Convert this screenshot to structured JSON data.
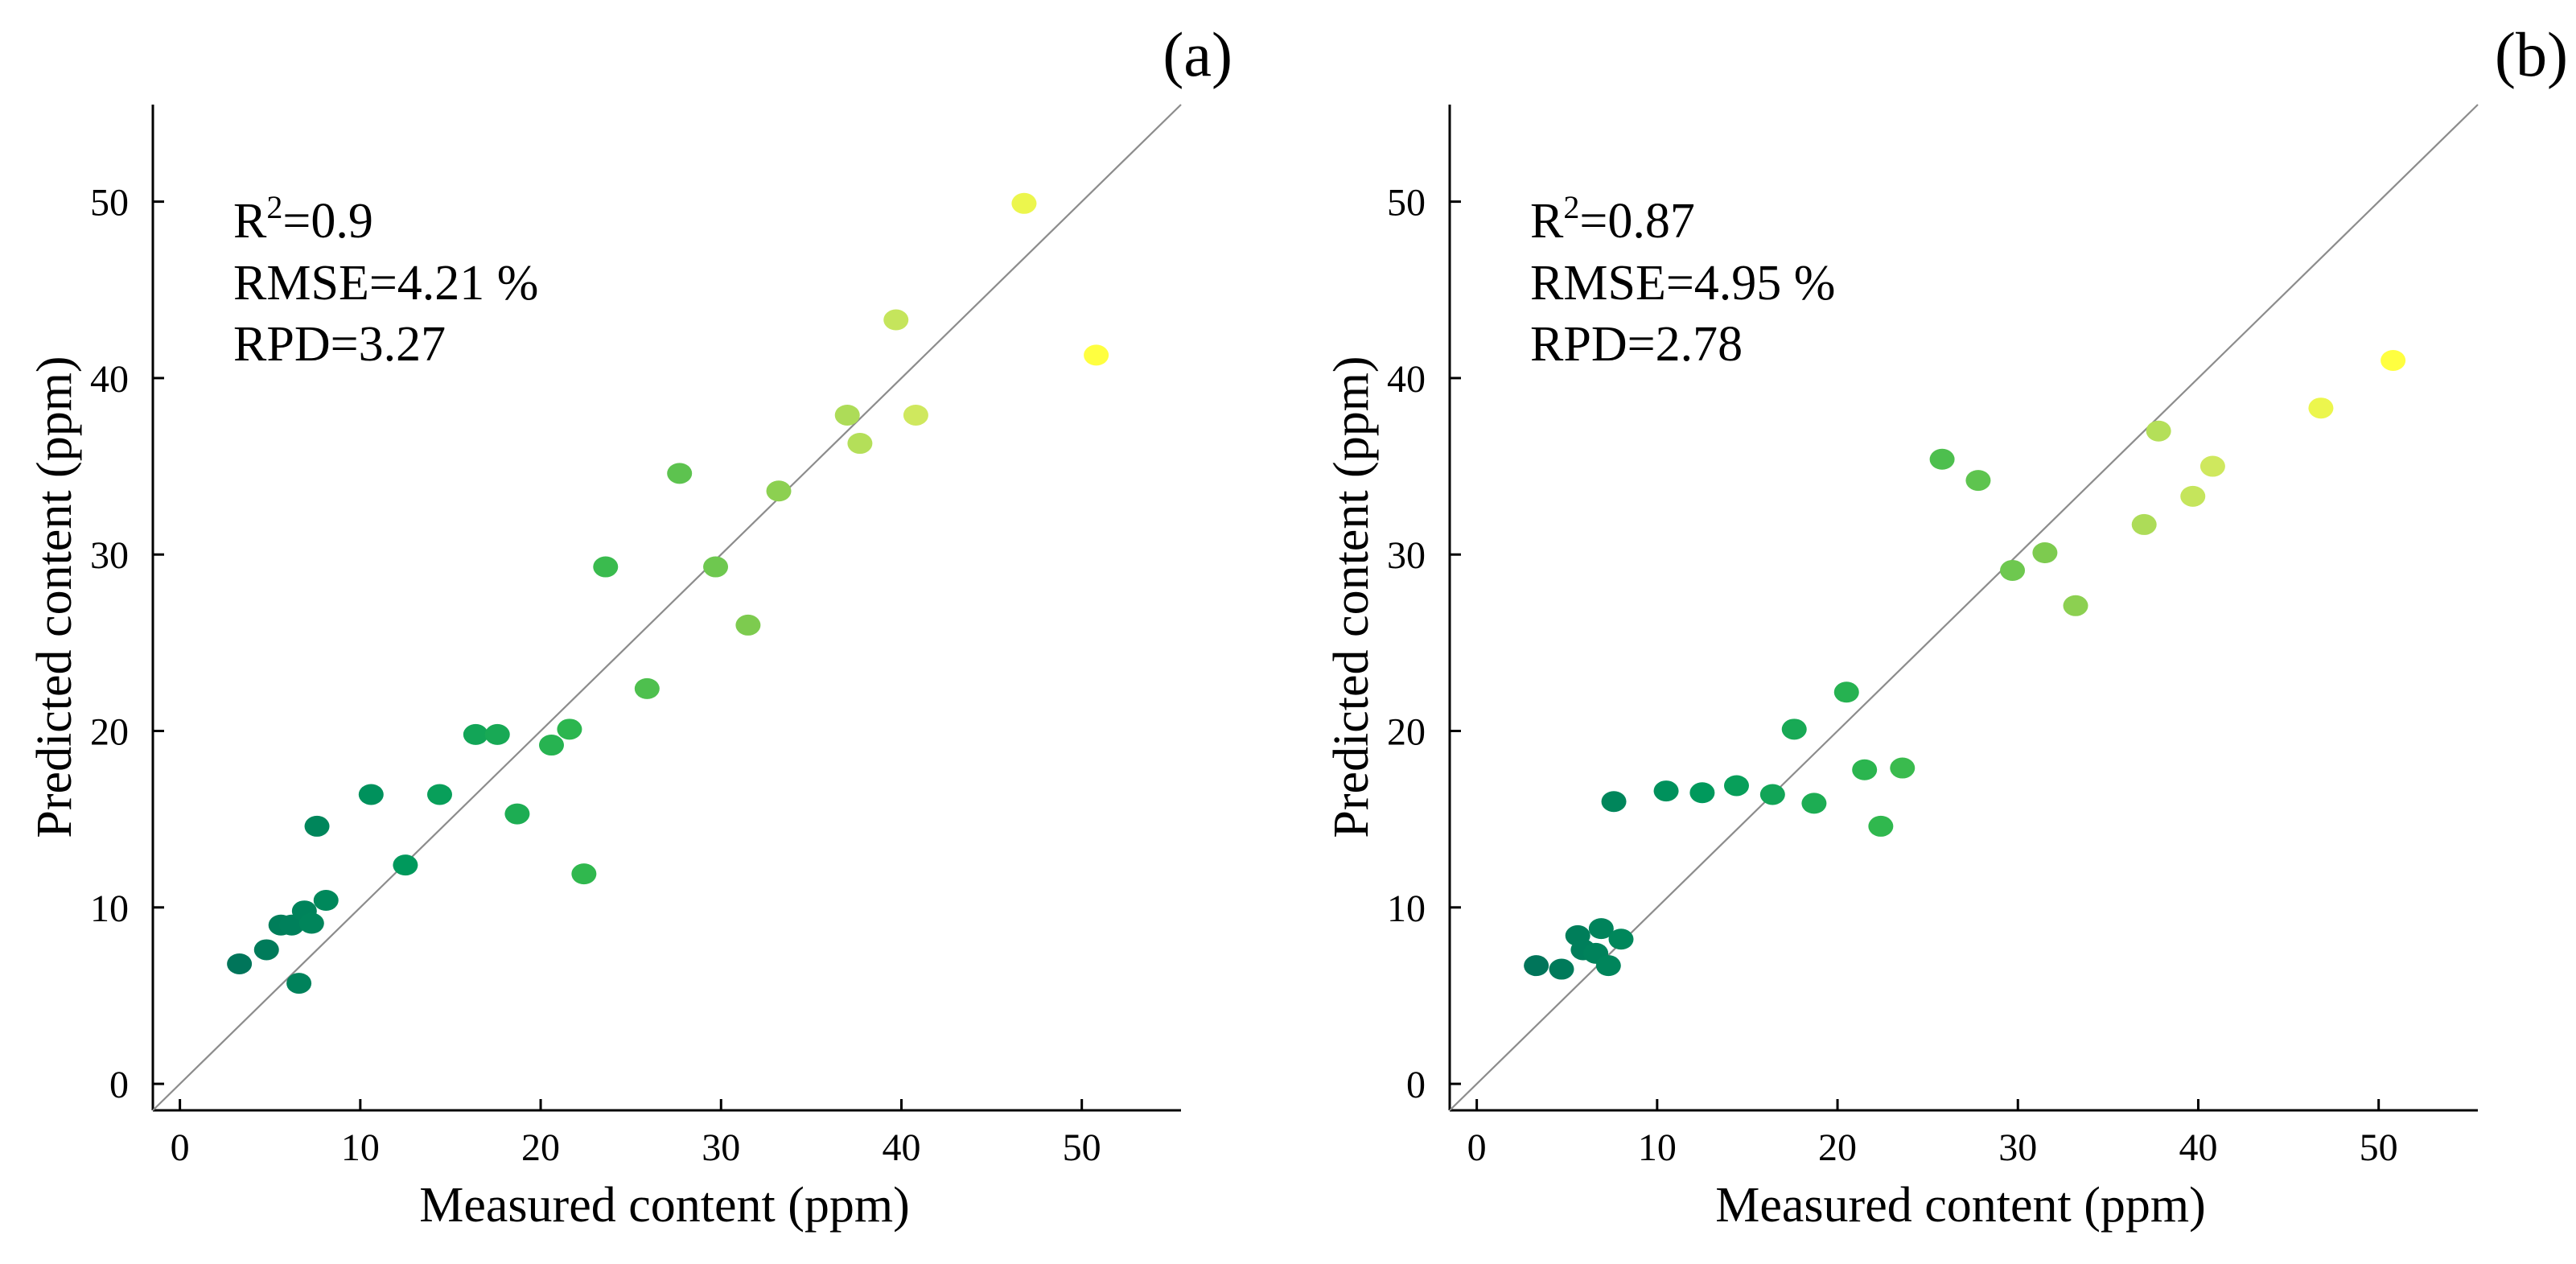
{
  "chart_data": [
    {
      "type": "scatter",
      "panel_label": "(a)",
      "xlabel": "Measured content (ppm)",
      "ylabel": "Predicted content (ppm)",
      "xlim": [
        -1.5,
        55.5
      ],
      "ylim": [
        -1.5,
        55.5
      ],
      "xticks": [
        "0",
        "10",
        "20",
        "30",
        "40",
        "50"
      ],
      "yticks": [
        "0",
        "10",
        "20",
        "30",
        "40",
        "50"
      ],
      "xtick_values": [
        0,
        10,
        20,
        30,
        40,
        50
      ],
      "ytick_values": [
        0,
        10,
        20,
        30,
        40,
        50
      ],
      "reference_line": "y = x",
      "stats": {
        "r2_label": "R",
        "r2_sup": "2",
        "r2_value": "=0.9",
        "rmse": "RMSE=4.21 %",
        "rpd": "RPD=3.27"
      },
      "colormap": [
        "#00755a",
        "#009a5c",
        "#2fb84e",
        "#80cc4f",
        "#d3ea5f",
        "#ffff40"
      ],
      "points": [
        {
          "x": 3.3,
          "y": 6.8
        },
        {
          "x": 4.8,
          "y": 7.6
        },
        {
          "x": 5.6,
          "y": 9.0
        },
        {
          "x": 6.2,
          "y": 9.0
        },
        {
          "x": 6.6,
          "y": 5.7
        },
        {
          "x": 6.9,
          "y": 9.8
        },
        {
          "x": 7.3,
          "y": 9.1
        },
        {
          "x": 7.6,
          "y": 14.6
        },
        {
          "x": 8.1,
          "y": 10.4
        },
        {
          "x": 10.6,
          "y": 16.4
        },
        {
          "x": 12.5,
          "y": 12.4
        },
        {
          "x": 14.4,
          "y": 16.4
        },
        {
          "x": 16.4,
          "y": 19.8
        },
        {
          "x": 17.6,
          "y": 19.8
        },
        {
          "x": 18.7,
          "y": 15.3
        },
        {
          "x": 20.6,
          "y": 19.2
        },
        {
          "x": 21.6,
          "y": 20.1
        },
        {
          "x": 22.4,
          "y": 11.9
        },
        {
          "x": 23.6,
          "y": 29.3
        },
        {
          "x": 25.9,
          "y": 22.4
        },
        {
          "x": 27.7,
          "y": 34.6
        },
        {
          "x": 29.7,
          "y": 29.3
        },
        {
          "x": 31.5,
          "y": 26.0
        },
        {
          "x": 33.2,
          "y": 33.6
        },
        {
          "x": 37.0,
          "y": 37.9
        },
        {
          "x": 37.7,
          "y": 36.3
        },
        {
          "x": 39.7,
          "y": 43.3
        },
        {
          "x": 40.8,
          "y": 37.9
        },
        {
          "x": 46.8,
          "y": 49.9
        },
        {
          "x": 50.8,
          "y": 41.3
        }
      ]
    },
    {
      "type": "scatter",
      "panel_label": "(b)",
      "xlabel": "Measured content (ppm)",
      "ylabel": "Predicted content (ppm)",
      "xlim": [
        -1.5,
        55.5
      ],
      "ylim": [
        -1.5,
        55.5
      ],
      "xticks": [
        "0",
        "10",
        "20",
        "30",
        "40",
        "50"
      ],
      "yticks": [
        "0",
        "10",
        "20",
        "30",
        "40",
        "50"
      ],
      "xtick_values": [
        0,
        10,
        20,
        30,
        40,
        50
      ],
      "ytick_values": [
        0,
        10,
        20,
        30,
        40,
        50
      ],
      "reference_line": "y = x",
      "stats": {
        "r2_label": "R",
        "r2_sup": "2",
        "r2_value": "=0.87",
        "rmse": "RMSE=4.95 %",
        "rpd": "RPD=2.78"
      },
      "colormap": [
        "#00755a",
        "#009a5c",
        "#2fb84e",
        "#80cc4f",
        "#d3ea5f",
        "#ffff40"
      ],
      "points": [
        {
          "x": 3.3,
          "y": 6.7
        },
        {
          "x": 4.7,
          "y": 6.5
        },
        {
          "x": 5.6,
          "y": 8.4
        },
        {
          "x": 5.9,
          "y": 7.6
        },
        {
          "x": 6.6,
          "y": 7.4
        },
        {
          "x": 6.9,
          "y": 8.8
        },
        {
          "x": 7.3,
          "y": 6.7
        },
        {
          "x": 7.6,
          "y": 16.0
        },
        {
          "x": 8.0,
          "y": 8.2
        },
        {
          "x": 10.5,
          "y": 16.6
        },
        {
          "x": 12.5,
          "y": 16.5
        },
        {
          "x": 14.4,
          "y": 16.9
        },
        {
          "x": 16.4,
          "y": 16.4
        },
        {
          "x": 17.6,
          "y": 20.1
        },
        {
          "x": 18.7,
          "y": 15.9
        },
        {
          "x": 20.5,
          "y": 22.2
        },
        {
          "x": 21.5,
          "y": 17.8
        },
        {
          "x": 22.4,
          "y": 14.6
        },
        {
          "x": 23.6,
          "y": 17.9
        },
        {
          "x": 25.8,
          "y": 35.4
        },
        {
          "x": 27.8,
          "y": 34.2
        },
        {
          "x": 29.7,
          "y": 29.1
        },
        {
          "x": 31.5,
          "y": 30.1
        },
        {
          "x": 33.2,
          "y": 27.1
        },
        {
          "x": 37.0,
          "y": 31.7
        },
        {
          "x": 37.8,
          "y": 37.0
        },
        {
          "x": 39.7,
          "y": 33.3
        },
        {
          "x": 40.8,
          "y": 35.0
        },
        {
          "x": 46.8,
          "y": 38.3
        },
        {
          "x": 50.8,
          "y": 41.0
        }
      ]
    }
  ]
}
